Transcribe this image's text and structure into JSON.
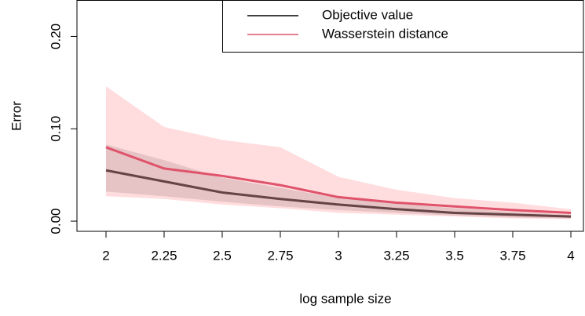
{
  "chart_data": {
    "type": "line",
    "xlabel": "log sample size",
    "ylabel": "Error",
    "x": [
      2,
      2.25,
      2.5,
      2.75,
      3,
      3.25,
      3.5,
      3.75,
      4
    ],
    "series": [
      {
        "name": "Objective value",
        "color": "#000000",
        "band_color": "rgba(90,90,90,0.25)",
        "values": [
          0.055,
          0.043,
          0.031,
          0.024,
          0.018,
          0.013,
          0.009,
          0.007,
          0.005
        ],
        "upper": [
          0.083,
          0.066,
          0.047,
          0.036,
          0.025,
          0.019,
          0.014,
          0.01,
          0.007
        ],
        "lower": [
          0.032,
          0.027,
          0.021,
          0.016,
          0.012,
          0.009,
          0.006,
          0.004,
          0.003
        ]
      },
      {
        "name": "Wasserstein distance",
        "color": "#DF536B",
        "band_color": "rgba(255,170,175,0.4)",
        "values": [
          0.08,
          0.057,
          0.049,
          0.039,
          0.026,
          0.02,
          0.016,
          0.012,
          0.009
        ],
        "upper": [
          0.146,
          0.102,
          0.088,
          0.08,
          0.048,
          0.034,
          0.025,
          0.02,
          0.013
        ],
        "lower": [
          0.027,
          0.024,
          0.018,
          0.014,
          0.009,
          0.007,
          0.005,
          0.003,
          0.002
        ]
      }
    ],
    "xlim": [
      1.875,
      4.054
    ],
    "ylim": [
      -0.011,
      0.239
    ],
    "xticks": [
      2,
      2.25,
      2.5,
      2.75,
      3,
      3.25,
      3.5,
      3.75,
      4
    ],
    "yticks": [
      {
        "value": 0,
        "label": "0.00"
      },
      {
        "value": 0.1,
        "label": "0.10"
      },
      {
        "value": 0.2,
        "label": "0.20"
      }
    ],
    "legend": "top-right"
  }
}
